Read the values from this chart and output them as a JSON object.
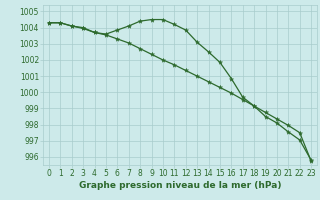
{
  "line1_x": [
    0,
    1,
    2,
    3,
    4,
    5,
    6,
    7,
    8,
    9,
    10,
    11,
    12,
    13,
    14,
    15,
    16,
    17,
    18,
    19,
    20,
    21,
    22,
    23
  ],
  "line1_y": [
    1004.3,
    1004.3,
    1004.1,
    1004.0,
    1003.7,
    1003.6,
    1003.85,
    1004.1,
    1004.4,
    1004.5,
    1004.5,
    1004.2,
    1003.85,
    1003.1,
    1002.5,
    1001.85,
    1000.85,
    999.7,
    999.15,
    998.5,
    998.1,
    997.55,
    997.05,
    995.8
  ],
  "line2_x": [
    0,
    1,
    2,
    3,
    4,
    5,
    6,
    7,
    8,
    9,
    10,
    11,
    12,
    13,
    14,
    15,
    16,
    17,
    18,
    19,
    20,
    21,
    22,
    23
  ],
  "line2_y": [
    1004.3,
    1004.3,
    1004.1,
    1003.95,
    1003.7,
    1003.55,
    1003.3,
    1003.05,
    1002.7,
    1002.35,
    1002.0,
    1001.7,
    1001.35,
    1001.0,
    1000.65,
    1000.3,
    999.95,
    999.55,
    999.15,
    998.75,
    998.35,
    997.95,
    997.5,
    995.75
  ],
  "line_color": "#2d6a2d",
  "bg_color": "#cdeaea",
  "grid_color": "#a8cccc",
  "xlabel": "Graphe pression niveau de la mer (hPa)",
  "yticks": [
    996,
    997,
    998,
    999,
    1000,
    1001,
    1002,
    1003,
    1004,
    1005
  ],
  "xticks": [
    0,
    1,
    2,
    3,
    4,
    5,
    6,
    7,
    8,
    9,
    10,
    11,
    12,
    13,
    14,
    15,
    16,
    17,
    18,
    19,
    20,
    21,
    22,
    23
  ],
  "ylim": [
    995.5,
    1005.4
  ],
  "xlim": [
    -0.5,
    23.5
  ],
  "tick_fontsize": 5.5,
  "xlabel_fontsize": 6.5
}
